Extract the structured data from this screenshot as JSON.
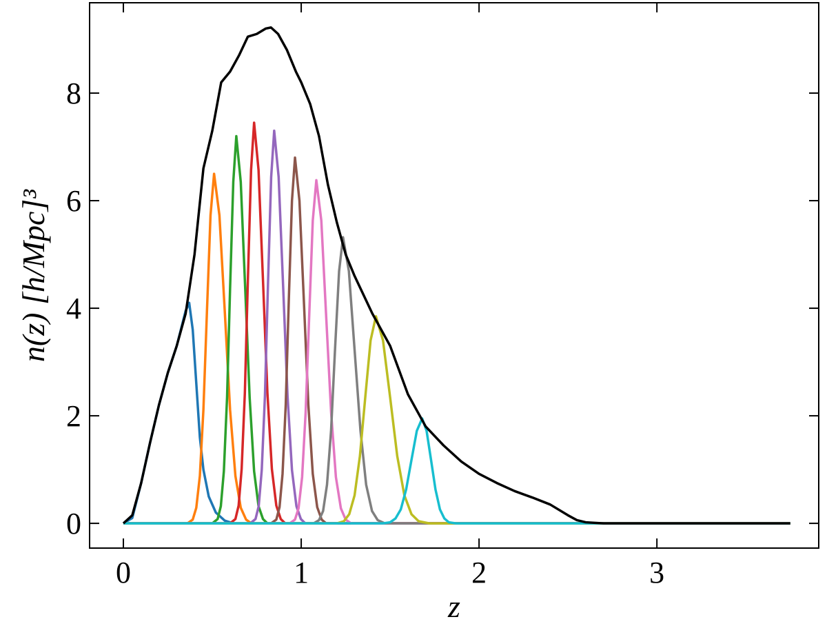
{
  "chart_data": {
    "type": "line",
    "xlabel": "z",
    "ylabel": "n(z) [h/Mpc]³",
    "xlim": [
      -0.19,
      3.91
    ],
    "ylim": [
      -0.46,
      9.68
    ],
    "xticks": [
      0,
      1,
      2,
      3
    ],
    "yticks": [
      0,
      2,
      4,
      6,
      8
    ],
    "series": [
      {
        "color": "#1f77b4",
        "x": [
          0,
          0.05,
          0.1,
          0.15,
          0.2,
          0.25,
          0.3,
          0.35,
          0.37,
          0.39,
          0.41,
          0.43,
          0.45,
          0.48,
          0.52,
          0.57,
          0.62,
          3.75
        ],
        "values": [
          0,
          0.1,
          0.75,
          1.5,
          2.2,
          2.8,
          3.3,
          3.95,
          4.1,
          3.6,
          2.6,
          1.6,
          1.0,
          0.5,
          0.2,
          0.05,
          0,
          0
        ]
      },
      {
        "color": "#ff7f0e",
        "x": [
          0,
          0.36,
          0.39,
          0.41,
          0.43,
          0.45,
          0.47,
          0.49,
          0.51,
          0.54,
          0.57,
          0.6,
          0.63,
          0.66,
          0.69,
          0.72,
          3.75
        ],
        "values": [
          0,
          0,
          0.07,
          0.29,
          0.88,
          2.11,
          3.95,
          5.73,
          6.5,
          5.73,
          3.95,
          2.11,
          0.88,
          0.29,
          0.07,
          0,
          0
        ]
      },
      {
        "color": "#2ca02c",
        "x": [
          0,
          0.5,
          0.53,
          0.548,
          0.565,
          0.583,
          0.6,
          0.618,
          0.635,
          0.66,
          0.685,
          0.71,
          0.735,
          0.76,
          0.785,
          0.81,
          3.75
        ],
        "values": [
          0,
          0,
          0.08,
          0.32,
          0.97,
          2.34,
          4.37,
          6.35,
          7.2,
          6.35,
          4.37,
          2.34,
          0.97,
          0.32,
          0.08,
          0,
          0
        ]
      },
      {
        "color": "#d62728",
        "x": [
          0,
          0.6,
          0.63,
          0.648,
          0.665,
          0.683,
          0.7,
          0.718,
          0.735,
          0.76,
          0.785,
          0.81,
          0.835,
          0.86,
          0.885,
          0.91,
          3.75
        ],
        "values": [
          0,
          0,
          0.08,
          0.33,
          1.01,
          2.42,
          4.52,
          6.57,
          7.45,
          6.57,
          4.52,
          2.42,
          1.01,
          0.33,
          0.08,
          0,
          0
        ]
      },
      {
        "color": "#9467bd",
        "x": [
          0,
          0.713,
          0.743,
          0.761,
          0.778,
          0.796,
          0.813,
          0.831,
          0.848,
          0.873,
          0.898,
          0.923,
          0.948,
          0.973,
          0.998,
          1.023,
          3.75
        ],
        "values": [
          0,
          0,
          0.08,
          0.32,
          0.99,
          2.37,
          4.43,
          6.44,
          7.3,
          6.44,
          4.43,
          2.37,
          0.99,
          0.32,
          0.08,
          0,
          0
        ]
      },
      {
        "color": "#8c564b",
        "x": [
          0,
          0.83,
          0.86,
          0.878,
          0.895,
          0.913,
          0.93,
          0.948,
          0.965,
          0.99,
          1.015,
          1.04,
          1.065,
          1.09,
          1.115,
          1.14,
          3.75
        ],
        "values": [
          0,
          0,
          0.07,
          0.3,
          0.92,
          2.21,
          4.13,
          6.0,
          6.8,
          6.0,
          4.13,
          2.21,
          0.92,
          0.3,
          0.07,
          0,
          0
        ]
      },
      {
        "color": "#e377c2",
        "x": [
          0,
          0.935,
          0.965,
          0.985,
          1.005,
          1.025,
          1.045,
          1.065,
          1.085,
          1.113,
          1.14,
          1.168,
          1.195,
          1.223,
          1.25,
          1.28,
          3.75
        ],
        "values": [
          0,
          0,
          0.07,
          0.28,
          0.86,
          2.07,
          3.87,
          5.63,
          6.38,
          5.63,
          3.87,
          2.07,
          0.86,
          0.28,
          0.07,
          0,
          0
        ]
      },
      {
        "color": "#7f7f7f",
        "x": [
          0,
          1.07,
          1.1,
          1.123,
          1.145,
          1.168,
          1.19,
          1.213,
          1.235,
          1.268,
          1.3,
          1.333,
          1.365,
          1.398,
          1.43,
          1.47,
          3.75
        ],
        "values": [
          0,
          0,
          0.06,
          0.23,
          0.72,
          1.73,
          3.23,
          4.69,
          5.32,
          4.69,
          3.23,
          1.73,
          0.72,
          0.23,
          0.06,
          0,
          0
        ]
      },
      {
        "color": "#bcbd22",
        "x": [
          0,
          1.2,
          1.24,
          1.27,
          1.3,
          1.33,
          1.36,
          1.39,
          1.42,
          1.46,
          1.5,
          1.54,
          1.58,
          1.62,
          1.66,
          1.72,
          3.75
        ],
        "values": [
          0,
          0,
          0.04,
          0.17,
          0.52,
          1.25,
          2.34,
          3.4,
          3.85,
          3.4,
          2.34,
          1.25,
          0.52,
          0.17,
          0.04,
          0,
          0
        ]
      },
      {
        "color": "#17becf",
        "x": [
          0,
          1.46,
          1.5,
          1.53,
          1.56,
          1.59,
          1.62,
          1.65,
          1.68,
          1.705,
          1.73,
          1.755,
          1.78,
          1.805,
          1.83,
          1.87,
          3.75
        ],
        "values": [
          0,
          0,
          0.02,
          0.09,
          0.26,
          0.63,
          1.18,
          1.72,
          1.95,
          1.72,
          1.18,
          0.63,
          0.26,
          0.09,
          0.02,
          0,
          0
        ]
      },
      {
        "color": "#000000",
        "x": [
          0,
          0.05,
          0.1,
          0.15,
          0.2,
          0.25,
          0.3,
          0.35,
          0.4,
          0.45,
          0.5,
          0.55,
          0.6,
          0.65,
          0.7,
          0.75,
          0.8,
          0.83,
          0.87,
          0.92,
          0.97,
          1.0,
          1.05,
          1.1,
          1.15,
          1.2,
          1.25,
          1.3,
          1.4,
          1.5,
          1.6,
          1.7,
          1.8,
          1.9,
          2.0,
          2.1,
          2.2,
          2.3,
          2.4,
          2.5,
          2.55,
          2.6,
          2.7,
          3.75
        ],
        "values": [
          0,
          0.15,
          0.75,
          1.5,
          2.2,
          2.8,
          3.3,
          3.9,
          5.0,
          6.6,
          7.3,
          8.2,
          8.4,
          8.7,
          9.05,
          9.1,
          9.2,
          9.22,
          9.1,
          8.8,
          8.4,
          8.2,
          7.8,
          7.2,
          6.3,
          5.6,
          5.0,
          4.6,
          3.9,
          3.3,
          2.4,
          1.8,
          1.45,
          1.15,
          0.92,
          0.75,
          0.6,
          0.48,
          0.35,
          0.15,
          0.06,
          0.02,
          0,
          0
        ]
      }
    ]
  }
}
